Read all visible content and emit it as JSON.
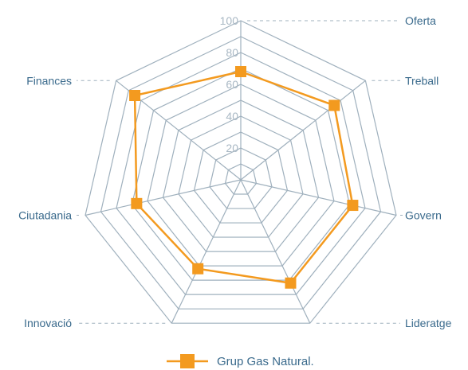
{
  "chart_data": {
    "type": "radar",
    "categories": [
      "Oferta",
      "Treball",
      "Govern",
      "Lideratge",
      "Innovació",
      "Ciutadania",
      "Finances"
    ],
    "rlim": [
      0,
      100
    ],
    "ticks": [
      20,
      40,
      60,
      80,
      100
    ],
    "tick_labels": [
      "20",
      "40",
      "60",
      "80",
      "100"
    ],
    "series": [
      {
        "name": "Grup Gas Natural.",
        "values": [
          68,
          75,
          72,
          72,
          62,
          67,
          85
        ],
        "color": "#f39a1f"
      }
    ],
    "legend_position": "bottom",
    "grid_color": "#9fb0bd",
    "label_color": "#3a6a8c"
  }
}
